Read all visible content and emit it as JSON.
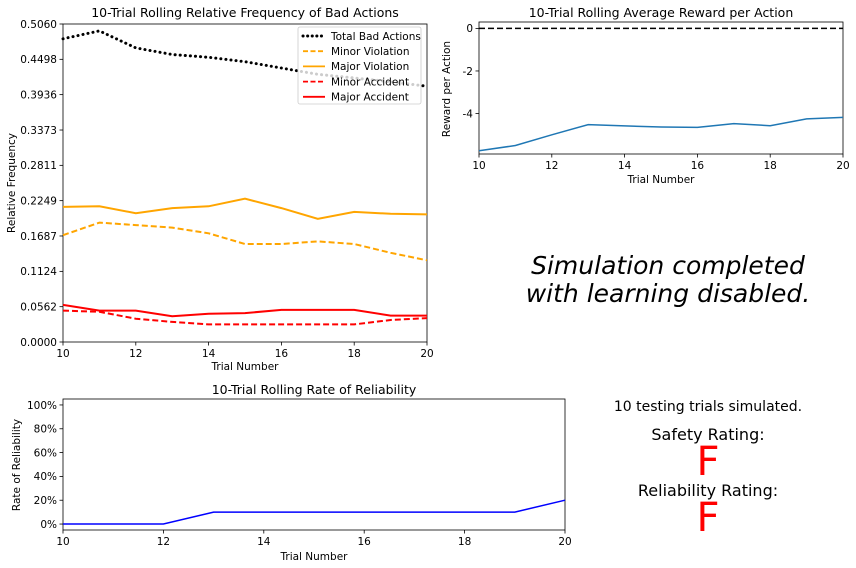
{
  "chart_data": [
    {
      "type": "line",
      "title": "10-Trial Rolling Relative Frequency of Bad Actions",
      "xlabel": "Trial Number",
      "ylabel": "Relative Frequency",
      "xlim": [
        10,
        20
      ],
      "ylim": [
        0,
        0.506
      ],
      "xticks": [
        10,
        12,
        14,
        16,
        18,
        20
      ],
      "yticks": [
        "0.0000",
        "0.0562",
        "0.1124",
        "0.1687",
        "0.2249",
        "0.2811",
        "0.3373",
        "0.3936",
        "0.4498",
        "0.5060"
      ],
      "legend_loc": "top-right",
      "x": [
        10,
        11,
        12,
        13,
        14,
        15,
        16,
        17,
        18,
        19,
        20
      ],
      "series": [
        {
          "name": "Total Bad Actions",
          "style": "dotted",
          "color": "#000000",
          "values": [
            0.4825,
            0.495,
            0.468,
            0.4575,
            0.453,
            0.446,
            0.436,
            0.426,
            0.42,
            0.414,
            0.407
          ]
        },
        {
          "name": "Minor Violation",
          "style": "dashed",
          "color": "#ffa500",
          "values": [
            0.17,
            0.19,
            0.186,
            0.182,
            0.173,
            0.156,
            0.156,
            0.16,
            0.156,
            0.142,
            0.13
          ]
        },
        {
          "name": "Major Violation",
          "style": "solid",
          "color": "#ffa500",
          "values": [
            0.215,
            0.216,
            0.205,
            0.213,
            0.216,
            0.228,
            0.213,
            0.196,
            0.207,
            0.204,
            0.203
          ]
        },
        {
          "name": "Minor Accident",
          "style": "dashed",
          "color": "#ff0000",
          "values": [
            0.05,
            0.048,
            0.037,
            0.032,
            0.028,
            0.028,
            0.028,
            0.028,
            0.028,
            0.035,
            0.038
          ]
        },
        {
          "name": "Major Accident",
          "style": "solid",
          "color": "#ff0000",
          "values": [
            0.059,
            0.05,
            0.05,
            0.041,
            0.045,
            0.046,
            0.051,
            0.051,
            0.051,
            0.042,
            0.042
          ]
        }
      ]
    },
    {
      "type": "line",
      "title": "10-Trial Rolling Average Reward per Action",
      "xlabel": "Trial Number",
      "ylabel": "Reward per Action",
      "xlim": [
        10,
        20
      ],
      "ylim": [
        -5.9,
        0.3
      ],
      "xticks": [
        10,
        12,
        14,
        16,
        18,
        20
      ],
      "yticks": [
        0,
        -2,
        -4
      ],
      "reference_line": {
        "y": 0,
        "style": "dashed",
        "color": "#000000"
      },
      "x": [
        10,
        11,
        12,
        13,
        14,
        15,
        16,
        17,
        18,
        19,
        20
      ],
      "series": [
        {
          "color": "#1f77b4",
          "values": [
            -5.75,
            -5.5,
            -5.0,
            -4.52,
            -4.58,
            -4.63,
            -4.65,
            -4.47,
            -4.57,
            -4.25,
            -4.18
          ]
        }
      ]
    },
    {
      "type": "line",
      "title": "10-Trial Rolling Rate of Reliability",
      "xlabel": "Trial Number",
      "ylabel": "Rate of Reliability",
      "xlim": [
        10,
        20
      ],
      "ylim": [
        -5,
        105
      ],
      "xticks": [
        10,
        12,
        14,
        16,
        18,
        20
      ],
      "yticks": [
        "0%",
        "20%",
        "40%",
        "60%",
        "80%",
        "100%"
      ],
      "x": [
        10,
        11,
        12,
        13,
        14,
        15,
        16,
        17,
        18,
        19,
        20
      ],
      "series": [
        {
          "color": "#0000ff",
          "values": [
            0,
            0,
            0,
            10,
            10,
            10,
            10,
            10,
            10,
            10,
            20
          ]
        }
      ]
    }
  ],
  "summary": {
    "message_line1": "Simulation completed",
    "message_line2": "with learning disabled.",
    "trials_text": "10 testing trials simulated.",
    "safety_label": "Safety Rating:",
    "safety_grade": "F",
    "reliability_label": "Reliability Rating:",
    "reliability_grade": "F",
    "grade_color": "#ff0000"
  }
}
